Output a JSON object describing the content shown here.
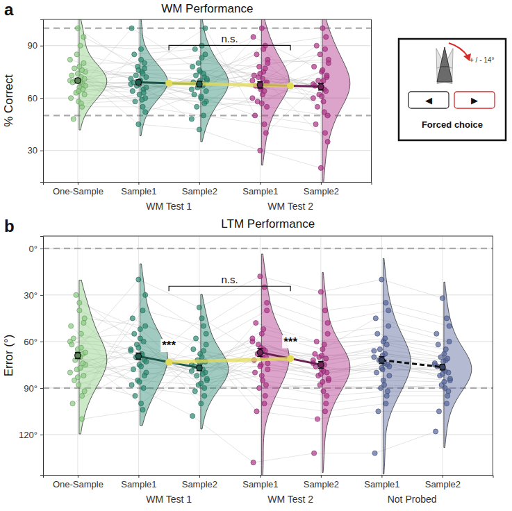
{
  "chart_data": [
    {
      "type": "raincloud",
      "panel_label": "a",
      "title": "WM Performance",
      "y_label": "% Correct",
      "categories": [
        "One-Sample",
        "Sample1",
        "Sample2",
        "Sample1",
        "Sample2"
      ],
      "colors": [
        "#8ccd83",
        "#2e8b74",
        "#2e8b74",
        "#b1358a",
        "#b1358a"
      ],
      "groups": [
        {
          "label": "WM Test 1",
          "members": [
            1,
            2
          ],
          "mean": 68.5,
          "color": "#e3dc55",
          "line_style": "solid"
        },
        {
          "label": "WM Test 2",
          "members": [
            3,
            4
          ],
          "mean": 67,
          "color": "#e3dc55",
          "line_style": "solid"
        }
      ],
      "points": [
        [
          70,
          75,
          62,
          80,
          68,
          55,
          72,
          90,
          66,
          58,
          74,
          85,
          63,
          70,
          77,
          48,
          69,
          73,
          60,
          82,
          67,
          71,
          95,
          65,
          76,
          57,
          69,
          78,
          64,
          100
        ],
        [
          68,
          72,
          60,
          80,
          65,
          55,
          75,
          88,
          70,
          62,
          45,
          78,
          67,
          73,
          58,
          85,
          69,
          64,
          100,
          71,
          66,
          52,
          77,
          63,
          74,
          59,
          82,
          70,
          68,
          76
        ],
        [
          65,
          70,
          58,
          85,
          72,
          50,
          68,
          90,
          60,
          75,
          42,
          80,
          66,
          55,
          73,
          88,
          62,
          69,
          78,
          48,
          71,
          64,
          100,
          57,
          74,
          67,
          83,
          61,
          70,
          76
        ],
        [
          70,
          82,
          55,
          68,
          90,
          45,
          75,
          62,
          100,
          65,
          30,
          78,
          72,
          58,
          85,
          67,
          50,
          73,
          95,
          60,
          80,
          69,
          40,
          77,
          64,
          88,
          71,
          57,
          66,
          74
        ],
        [
          68,
          80,
          50,
          72,
          95,
          40,
          65,
          58,
          100,
          75,
          20,
          85,
          62,
          70,
          55,
          90,
          45,
          67,
          78,
          60,
          82,
          35,
          73,
          64,
          88,
          52,
          70,
          76,
          61,
          66
        ]
      ],
      "means": [
        70,
        69,
        68,
        67.5,
        66.5
      ],
      "errors": [
        1.3,
        1.4,
        1.5,
        1.8,
        1.9
      ],
      "ylim": [
        12,
        105
      ],
      "yticks": [
        30,
        60,
        90
      ],
      "ref_lines": [
        50,
        100
      ],
      "grid": true,
      "annotations": [
        {
          "text": "n.s.",
          "between_groups": [
            0,
            1
          ]
        }
      ],
      "inset": {
        "rotation_label": "+ / - 14°",
        "buttons": [
          "◀",
          "▶"
        ],
        "caption": "Forced choice"
      }
    },
    {
      "type": "raincloud",
      "panel_label": "b",
      "title": "LTM Performance",
      "y_label": "Error (°)",
      "categories": [
        "One-Sample",
        "Sample1",
        "Sample2",
        "Sample1",
        "Sample2",
        "Sample1",
        "Sample2"
      ],
      "colors": [
        "#8ccd83",
        "#2e8b74",
        "#2e8b74",
        "#b1358a",
        "#b1358a",
        "#56679c",
        "#56679c"
      ],
      "groups": [
        {
          "label": "WM Test 1",
          "members": [
            1,
            2
          ],
          "mean": 73.3,
          "color": "#e3dc55",
          "line_style": "solid"
        },
        {
          "label": "WM Test 2",
          "members": [
            3,
            4
          ],
          "mean": 71,
          "color": "#e3dc55",
          "line_style": "solid"
        },
        {
          "label": "Not Probed",
          "members": [
            5,
            6
          ],
          "line_style": "dashed"
        }
      ],
      "points": [
        [
          60,
          75,
          45,
          82,
          68,
          95,
          55,
          70,
          40,
          88,
          65,
          78,
          30,
          72,
          85,
          58,
          100,
          62,
          50,
          80,
          67,
          92,
          48,
          74,
          110,
          64,
          77,
          35,
          70,
          83
        ],
        [
          65,
          80,
          50,
          72,
          90,
          40,
          68,
          100,
          58,
          75,
          20,
          85,
          62,
          70,
          95,
          55,
          78,
          45,
          88,
          66,
          73,
          30,
          82,
          60,
          104,
          69,
          76,
          52,
          86,
          64
        ],
        [
          75,
          85,
          62,
          80,
          95,
          50,
          78,
          70,
          100,
          68,
          38,
          88,
          72,
          82,
          58,
          92,
          76,
          65,
          108,
          79,
          84,
          55,
          73,
          90,
          66,
          81,
          45,
          87,
          74,
          77
        ],
        [
          60,
          78,
          40,
          70,
          95,
          25,
          65,
          85,
          55,
          75,
          18,
          90,
          62,
          68,
          105,
          48,
          80,
          72,
          138,
          58,
          74,
          35,
          88,
          66,
          100,
          52,
          70,
          82,
          64,
          76
        ],
        [
          72,
          85,
          55,
          80,
          100,
          40,
          75,
          92,
          65,
          78,
          28,
          88,
          70,
          82,
          110,
          60,
          76,
          68,
          132,
          74,
          84,
          48,
          95,
          71,
          105,
          62,
          79,
          86,
          69,
          81
        ],
        [
          70,
          82,
          50,
          75,
          95,
          35,
          68,
          88,
          60,
          78,
          20,
          90,
          65,
          72,
          105,
          55,
          80,
          45,
          132,
          66,
          76,
          40,
          92,
          62,
          100,
          58,
          74,
          85,
          69,
          77
        ],
        [
          75,
          85,
          60,
          80,
          95,
          45,
          72,
          90,
          68,
          78,
          32,
          88,
          70,
          82,
          105,
          62,
          76,
          55,
          118,
          74,
          84,
          50,
          92,
          71,
          100,
          65,
          79,
          86,
          73,
          81
        ]
      ],
      "means": [
        69,
        69.5,
        77,
        67,
        75,
        72,
        76.5
      ],
      "errors": [
        2,
        2,
        1.7,
        2.6,
        2.2,
        2.2,
        1.8
      ],
      "ylim": [
        146,
        -8
      ],
      "yticks": [
        {
          "value": 0,
          "label": "0°"
        },
        {
          "value": 30,
          "label": "30°"
        },
        {
          "value": 60,
          "label": "60°"
        },
        {
          "value": 90,
          "label": "90°"
        },
        {
          "value": 120,
          "label": "120°"
        }
      ],
      "ref_lines": [
        0,
        90
      ],
      "grid": true,
      "annotations": [
        {
          "text": "***",
          "between": [
            1,
            2
          ]
        },
        {
          "text": "***",
          "between": [
            3,
            4
          ]
        },
        {
          "text": "n.s.",
          "between_groups": [
            0,
            1
          ]
        }
      ]
    }
  ]
}
